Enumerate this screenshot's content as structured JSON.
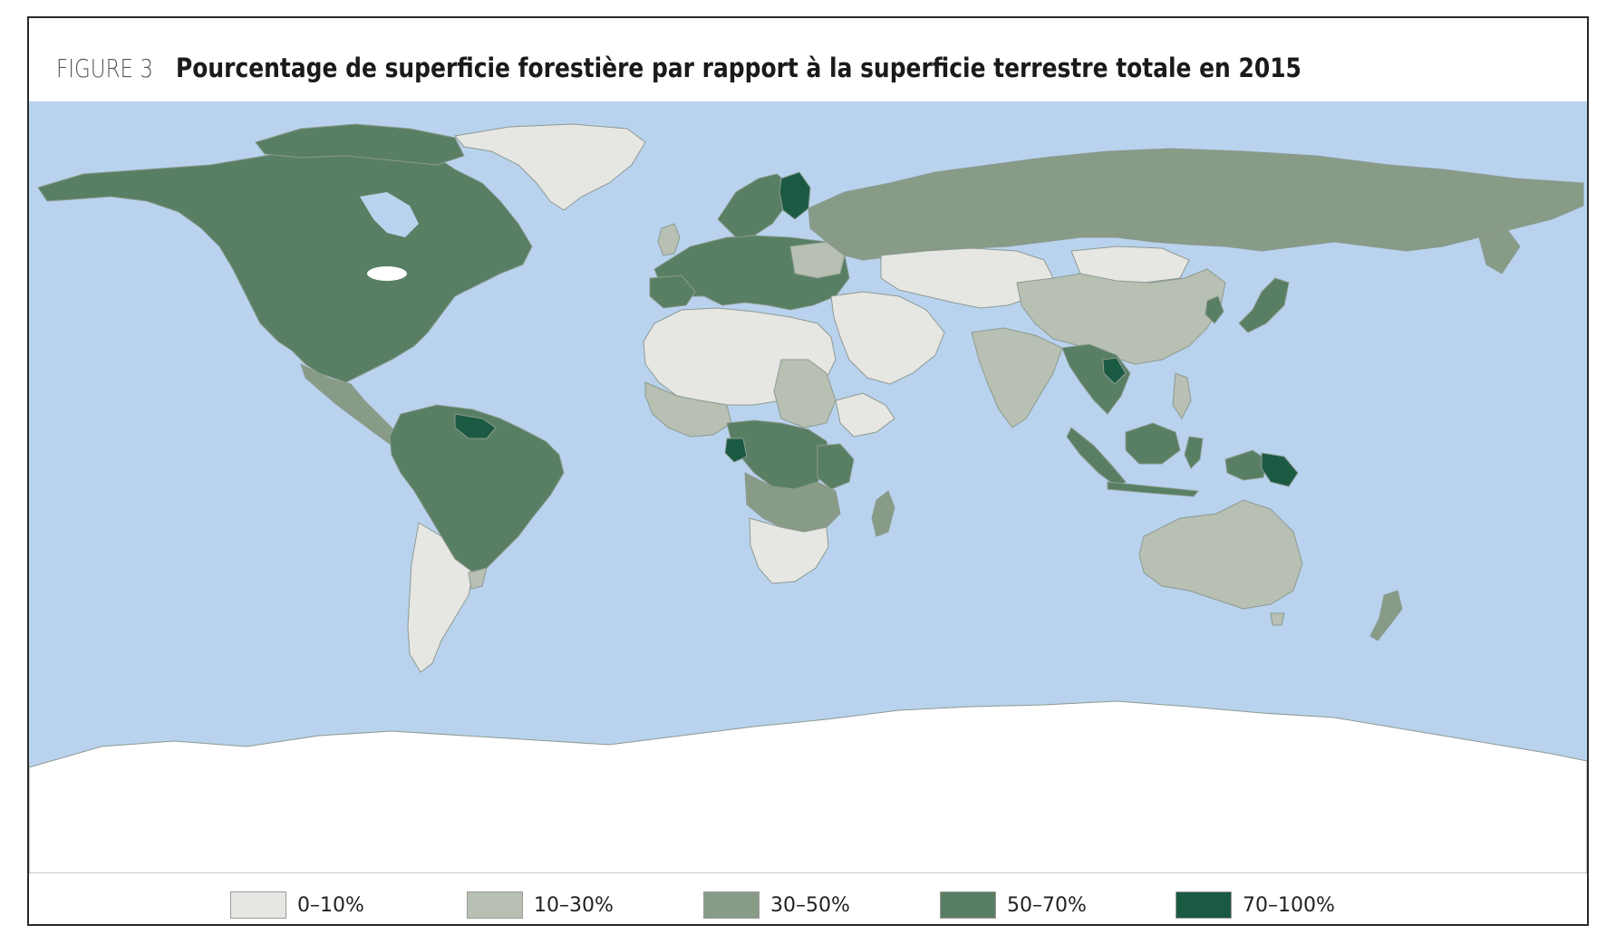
{
  "figure": {
    "label": "FIGURE 3",
    "title": "Pourcentage de superficie forestière par rapport à la superficie terrestre totale en 2015"
  },
  "colors": {
    "ocean": "#b9d3ee",
    "antarctica": "#ffffff",
    "border": "#8d9a91",
    "class_0_10": "#e6e6e3",
    "class_10_30": "#b7c0b2",
    "class_30_50": "#879b87",
    "class_50_70": "#587f63",
    "class_70_100": "#1a5a42"
  },
  "legend": [
    {
      "label": "0–10%",
      "color": "#e6e6e3"
    },
    {
      "label": "10–30%",
      "color": "#b7c0b2"
    },
    {
      "label": "30–50%",
      "color": "#879b87"
    },
    {
      "label": "50–70%",
      "color": "#587f63"
    },
    {
      "label": "70–100%",
      "color": "#1a5a42"
    }
  ]
}
